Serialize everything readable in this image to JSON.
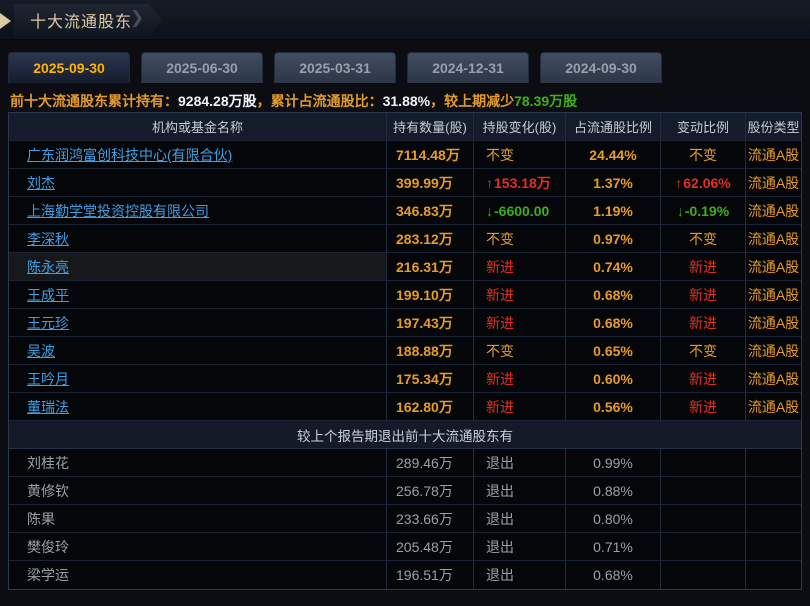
{
  "title": "十大流通股东",
  "tabs": [
    {
      "label": "2025-09-30",
      "active": true
    },
    {
      "label": "2025-06-30",
      "active": false
    },
    {
      "label": "2025-03-31",
      "active": false
    },
    {
      "label": "2024-12-31",
      "active": false
    },
    {
      "label": "2024-09-30",
      "active": false
    }
  ],
  "summary": {
    "label1": "前十大流通股东累计持有：",
    "value1": "9284.28万股",
    "label2": "，累计占流通股比：",
    "value2": "31.88%",
    "label3": "，较上期减少",
    "value3": "78.39万股"
  },
  "table": {
    "headers": [
      "机构或基金名称",
      "持有数量(股)",
      "持股变化(股)",
      "占流通股比例",
      "变动比例",
      "股份类型"
    ],
    "rows": [
      {
        "name": "广东润鸿富创科技中心(有限合伙)",
        "qty": "7114.48万",
        "change": {
          "text": "不变",
          "dir": "flat"
        },
        "pct": "24.44%",
        "change_pct": {
          "text": "不变",
          "dir": "flat"
        },
        "type": "流通A股",
        "hovered": false
      },
      {
        "name": "刘杰",
        "qty": "399.99万",
        "change": {
          "text": "153.18万",
          "dir": "up"
        },
        "pct": "1.37%",
        "change_pct": {
          "text": "62.06%",
          "dir": "up"
        },
        "type": "流通A股",
        "hovered": false
      },
      {
        "name": "上海勤学堂投资控股有限公司",
        "qty": "346.83万",
        "change": {
          "text": "-6600.00",
          "dir": "down"
        },
        "pct": "1.19%",
        "change_pct": {
          "text": "-0.19%",
          "dir": "down"
        },
        "type": "流通A股",
        "hovered": false
      },
      {
        "name": "李深秋",
        "qty": "283.12万",
        "change": {
          "text": "不变",
          "dir": "flat"
        },
        "pct": "0.97%",
        "change_pct": {
          "text": "不变",
          "dir": "flat"
        },
        "type": "流通A股",
        "hovered": false
      },
      {
        "name": "陈永亮",
        "qty": "216.31万",
        "change": {
          "text": "新进",
          "dir": "new"
        },
        "pct": "0.74%",
        "change_pct": {
          "text": "新进",
          "dir": "new"
        },
        "type": "流通A股",
        "hovered": true
      },
      {
        "name": "王成平",
        "qty": "199.10万",
        "change": {
          "text": "新进",
          "dir": "new"
        },
        "pct": "0.68%",
        "change_pct": {
          "text": "新进",
          "dir": "new"
        },
        "type": "流通A股",
        "hovered": false
      },
      {
        "name": "王元珍",
        "qty": "197.43万",
        "change": {
          "text": "新进",
          "dir": "new"
        },
        "pct": "0.68%",
        "change_pct": {
          "text": "新进",
          "dir": "new"
        },
        "type": "流通A股",
        "hovered": false
      },
      {
        "name": "吴波",
        "qty": "188.88万",
        "change": {
          "text": "不变",
          "dir": "flat"
        },
        "pct": "0.65%",
        "change_pct": {
          "text": "不变",
          "dir": "flat"
        },
        "type": "流通A股",
        "hovered": false
      },
      {
        "name": "王吟月",
        "qty": "175.34万",
        "change": {
          "text": "新进",
          "dir": "new"
        },
        "pct": "0.60%",
        "change_pct": {
          "text": "新进",
          "dir": "new"
        },
        "type": "流通A股",
        "hovered": false
      },
      {
        "name": "董瑞法",
        "qty": "162.80万",
        "change": {
          "text": "新进",
          "dir": "new"
        },
        "pct": "0.56%",
        "change_pct": {
          "text": "新进",
          "dir": "new"
        },
        "type": "流通A股",
        "hovered": false
      }
    ],
    "separator": "较上个报告期退出前十大流通股东有",
    "exited_rows": [
      {
        "name": "刘桂花",
        "qty": "289.46万",
        "status": "退出",
        "pct": "0.99%"
      },
      {
        "name": "黄修钦",
        "qty": "256.78万",
        "status": "退出",
        "pct": "0.88%"
      },
      {
        "name": "陈果",
        "qty": "233.66万",
        "status": "退出",
        "pct": "0.80%"
      },
      {
        "name": "樊俊玲",
        "qty": "205.48万",
        "status": "退出",
        "pct": "0.71%"
      },
      {
        "name": "梁学运",
        "qty": "196.51万",
        "status": "退出",
        "pct": "0.68%"
      }
    ]
  },
  "icons": {
    "up_arrow": "↑",
    "down_arrow": "↓",
    "breadcrumb_arrow": "right-triangle",
    "tab_chevron": "❯"
  },
  "colors": {
    "link_blue": "#3f9fe0",
    "value_orange": "#e89b26",
    "increase_red": "#e33022",
    "decrease_green": "#3fae1a",
    "exited_gray": "#9aa1a9",
    "active_tab_text": "#ffb400",
    "title_beige": "#d9cba6",
    "summary_label_orange": "#e39a2c"
  }
}
